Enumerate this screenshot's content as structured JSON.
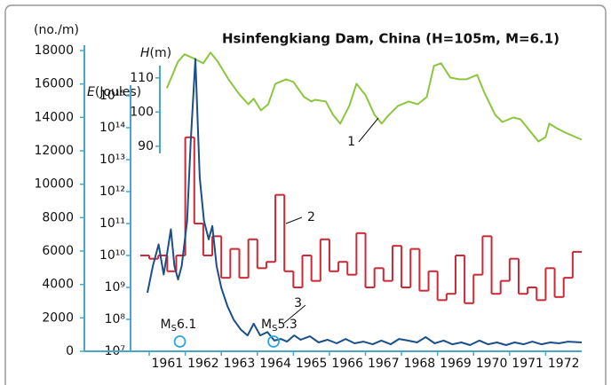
{
  "chart_data": {
    "type": "line",
    "title": "Hsinfengkiang Dam, China (H=105m, M=6.1)",
    "y_label": "(no./m)",
    "y2_label_symbol": "E",
    "y2_label_unit": "(Joules)",
    "y3_label_symbol": "H",
    "y3_label_unit": "(m)",
    "xlim": [
      1959.2,
      1973.0
    ],
    "xticks": [
      1961,
      1962,
      1963,
      1964,
      1965,
      1966,
      1967,
      1968,
      1969,
      1970,
      1971,
      1972
    ],
    "ylim": [
      0,
      18000
    ],
    "yticks": [
      0,
      2000,
      4000,
      6000,
      8000,
      10000,
      12000,
      14000,
      16000,
      18000
    ],
    "y2_log": true,
    "y2lim": [
      10000000,
      26000000000000000
    ],
    "y2ticks": [
      {
        "value": 10000000,
        "label": "10⁷"
      },
      {
        "value": 100000000,
        "label": "10⁸"
      },
      {
        "value": 1000000000,
        "label": "10⁹"
      },
      {
        "value": 10000000000,
        "label": "10¹⁰"
      },
      {
        "value": 100000000000,
        "label": "10¹¹"
      },
      {
        "value": 1000000000000,
        "label": "10¹²"
      },
      {
        "value": 10000000000000,
        "label": "10¹³"
      },
      {
        "value": 100000000000000,
        "label": "10¹⁴"
      },
      {
        "value": 1000000000000000,
        "label": "10¹⁵"
      }
    ],
    "y3lim": [
      30,
      118
    ],
    "y3ticks": [
      90,
      100,
      110
    ],
    "axis_color": "#4aa6c6",
    "series": [
      {
        "name": "1",
        "color": "#8cc63f",
        "axis": "y3",
        "style": "line",
        "x": [
          1961.49,
          1961.8,
          1961.98,
          1962.25,
          1962.5,
          1962.7,
          1962.9,
          1963.2,
          1963.5,
          1963.75,
          1963.9,
          1964.1,
          1964.3,
          1964.5,
          1964.8,
          1965.0,
          1965.3,
          1965.5,
          1965.6,
          1965.9,
          1966.1,
          1966.3,
          1966.55,
          1966.75,
          1967.0,
          1967.25,
          1967.45,
          1967.6,
          1967.9,
          1968.2,
          1968.45,
          1968.7,
          1968.9,
          1969.1,
          1969.35,
          1969.6,
          1969.8,
          1970.1,
          1970.3,
          1970.6,
          1970.8,
          1971.1,
          1971.3,
          1971.6,
          1971.8,
          1972.0,
          1972.1,
          1972.3,
          1972.55,
          1973.0
        ],
        "values": [
          107.0,
          114.8,
          116.9,
          115.6,
          114.3,
          117.4,
          114.8,
          109.6,
          105.2,
          102.3,
          103.9,
          100.5,
          102.3,
          108.3,
          109.6,
          108.8,
          104.4,
          103.1,
          103.6,
          103.1,
          99.2,
          96.6,
          101.8,
          108.3,
          105.0,
          99.2,
          96.6,
          98.6,
          101.8,
          103.1,
          102.3,
          104.4,
          113.5,
          114.3,
          110.1,
          109.6,
          109.6,
          110.9,
          105.7,
          99.2,
          97.1,
          98.4,
          97.9,
          94.0,
          91.4,
          92.7,
          96.6,
          95.3,
          94.0,
          91.9
        ]
      },
      {
        "name": "2",
        "color": "#cc2936",
        "axis": "y2",
        "style": "step",
        "x": [
          1960.75,
          1961.0,
          1961.25,
          1961.5,
          1961.75,
          1962.0,
          1962.25,
          1962.5,
          1962.75,
          1963.0,
          1963.25,
          1963.5,
          1963.75,
          1964.0,
          1964.25,
          1964.5,
          1964.75,
          1965.0,
          1965.25,
          1965.5,
          1965.75,
          1966.0,
          1966.25,
          1966.5,
          1966.75,
          1967.0,
          1967.25,
          1967.5,
          1967.75,
          1968.0,
          1968.25,
          1968.5,
          1968.75,
          1969.0,
          1969.25,
          1969.5,
          1969.75,
          1970.0,
          1970.25,
          1970.5,
          1970.75,
          1971.0,
          1971.25,
          1971.5,
          1971.75,
          1972.0,
          1972.25,
          1972.5,
          1972.75
        ],
        "values": [
          10000000000,
          7900000000,
          10000000000,
          3200000000,
          10000000000,
          50000000000000,
          100000000000,
          10000000000,
          40000000000,
          2000000000,
          16000000000,
          2000000000,
          32000000000,
          4000000000,
          6300000000,
          790000000000,
          3200000000,
          1000000000,
          10000000000,
          1600000000,
          32000000000,
          3200000000,
          6300000000,
          2500000000,
          50000000000,
          1000000000,
          4000000000,
          1600000000,
          20000000000,
          1000000000,
          16000000000,
          790000000,
          3200000000,
          400000000,
          630000000,
          10000000000,
          320000000,
          2500000000,
          40000000000,
          630000000,
          1600000000,
          7900000000,
          630000000,
          1000000000,
          400000000,
          4000000000,
          500000000,
          2000000000,
          13000000000
        ]
      },
      {
        "name": "3",
        "color": "#1b4f8a",
        "axis": "y",
        "style": "line",
        "x": [
          1960.95,
          1961.1,
          1961.26,
          1961.4,
          1961.5,
          1961.6,
          1961.7,
          1961.8,
          1961.9,
          1962.05,
          1962.15,
          1962.28,
          1962.4,
          1962.52,
          1962.65,
          1962.75,
          1962.87,
          1963.0,
          1963.17,
          1963.34,
          1963.54,
          1963.73,
          1963.9,
          1964.08,
          1964.28,
          1964.47,
          1964.65,
          1964.82,
          1965.02,
          1965.2,
          1965.46,
          1965.7,
          1965.95,
          1966.2,
          1966.45,
          1966.7,
          1966.94,
          1967.2,
          1967.44,
          1967.7,
          1967.93,
          1968.18,
          1968.43,
          1968.67,
          1968.92,
          1969.17,
          1969.41,
          1969.66,
          1969.9,
          1970.16,
          1970.4,
          1970.65,
          1970.9,
          1971.14,
          1971.39,
          1971.63,
          1971.88,
          1972.13,
          1972.37,
          1972.62,
          1973.0
        ],
        "values": [
          3500,
          5100,
          6400,
          4600,
          5900,
          7300,
          5100,
          4300,
          5100,
          7800,
          12500,
          17500,
          10400,
          7800,
          6700,
          7500,
          5100,
          3800,
          2700,
          1900,
          1300,
          950,
          1650,
          950,
          1150,
          640,
          740,
          580,
          950,
          690,
          900,
          530,
          690,
          480,
          740,
          480,
          580,
          420,
          640,
          420,
          740,
          640,
          530,
          850,
          480,
          640,
          420,
          530,
          370,
          640,
          420,
          530,
          370,
          530,
          420,
          580,
          420,
          530,
          480,
          580,
          530
        ]
      }
    ],
    "events": [
      {
        "symbol": "M",
        "subscript": "S",
        "magnitude": 6.1,
        "x": 1961.85
      },
      {
        "symbol": "M",
        "subscript": "S",
        "magnitude": 5.3,
        "x": 1964.45
      }
    ]
  }
}
